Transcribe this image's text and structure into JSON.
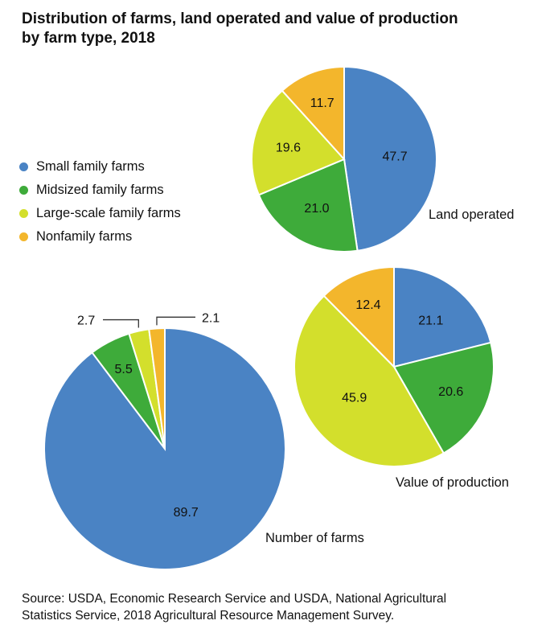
{
  "title": {
    "line1": "Distribution of farms, land operated and value of production",
    "line2": "by farm type, 2018"
  },
  "legend": {
    "items": [
      {
        "label": "Small family farms",
        "color": "#4a83c4"
      },
      {
        "label": "Midsized family farms",
        "color": "#3eab3a"
      },
      {
        "label": "Large-scale family farms",
        "color": "#d3df2c"
      },
      {
        "label": "Nonfamily farms",
        "color": "#f3b62c"
      }
    ]
  },
  "chart_data": [
    {
      "type": "pie",
      "title": "Land operated",
      "categories": [
        "Small family farms",
        "Midsized family farms",
        "Large-scale family farms",
        "Nonfamily farms"
      ],
      "values": [
        47.7,
        21.0,
        19.6,
        11.7
      ],
      "labels": [
        "47.7",
        "21.0",
        "19.6",
        "11.7"
      ]
    },
    {
      "type": "pie",
      "title": "Value of production",
      "categories": [
        "Small family farms",
        "Midsized family farms",
        "Large-scale family farms",
        "Nonfamily farms"
      ],
      "values": [
        21.1,
        20.6,
        45.9,
        12.4
      ],
      "labels": [
        "21.1",
        "20.6",
        "45.9",
        "12.4"
      ]
    },
    {
      "type": "pie",
      "title": "Number of farms",
      "categories": [
        "Small family farms",
        "Midsized family farms",
        "Large-scale family farms",
        "Nonfamily farms"
      ],
      "values": [
        89.7,
        5.5,
        2.7,
        2.1
      ],
      "labels": [
        "89.7",
        "5.5",
        "2.7",
        "2.1"
      ]
    }
  ],
  "source": {
    "line1": "Source: USDA, Economic Research Service and USDA, National Agricultural",
    "line2": "Statistics Service, 2018 Agricultural Resource Management Survey."
  }
}
